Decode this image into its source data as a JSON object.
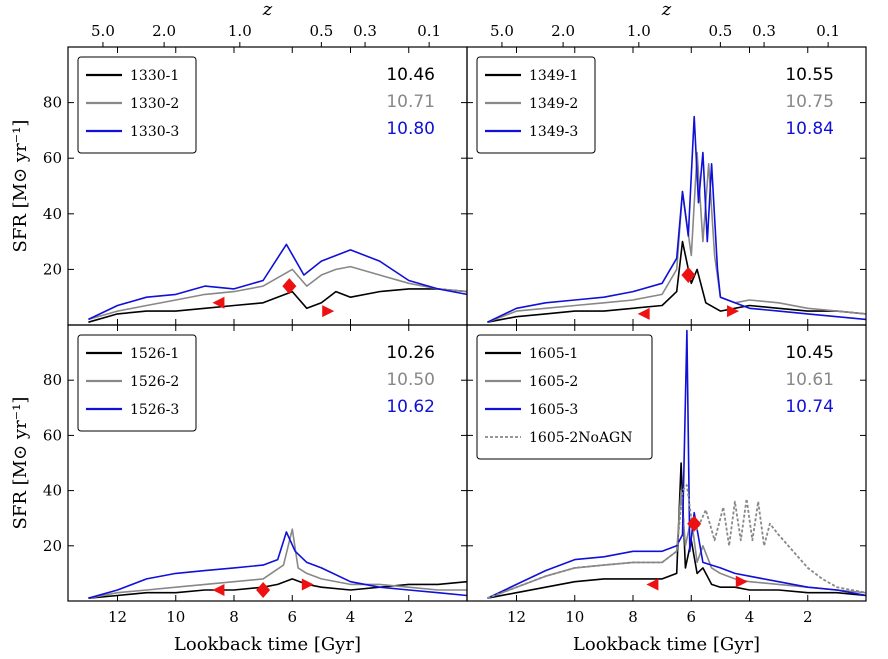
{
  "chart_data": {
    "type": "line",
    "xlabel": "Lookback time [Gyr]",
    "ylabel": "SFR [M⊙ yr⁻¹]",
    "top_axis_label": "z",
    "xlim": [
      13.7,
      0
    ],
    "ylim": [
      0,
      100
    ],
    "x_ticks": [
      12,
      10,
      8,
      6,
      4,
      2
    ],
    "y_ticks": [
      20,
      40,
      60,
      80
    ],
    "z_ticks": [
      {
        "label": "5.0",
        "t": 12.5
      },
      {
        "label": "2.0",
        "t": 10.4
      },
      {
        "label": "1.0",
        "t": 7.8
      },
      {
        "label": "0.5",
        "t": 5.0
      },
      {
        "label": "0.3",
        "t": 3.5
      },
      {
        "label": "0.1",
        "t": 1.3
      }
    ],
    "colors": {
      "run1": "#000000",
      "run2": "#888888",
      "run3": "#1010d8",
      "marker": "#ee1111"
    },
    "panels": [
      {
        "id": "1330",
        "legend": [
          "1330-1",
          "1330-2",
          "1330-3"
        ],
        "masses": [
          "10.46",
          "10.71",
          "10.80"
        ],
        "series": [
          {
            "name": "1330-1",
            "x": [
              13.0,
              12.0,
              11.0,
              10.0,
              9.0,
              8.0,
              7.0,
              6.0,
              5.5,
              5.0,
              4.5,
              4.0,
              3.0,
              2.0,
              1.0,
              0.0
            ],
            "y": [
              1,
              4,
              5,
              5,
              6,
              7,
              8,
              12,
              6,
              8,
              12,
              10,
              12,
              13,
              13,
              12
            ]
          },
          {
            "name": "1330-2",
            "x": [
              13.0,
              12.0,
              11.0,
              10.0,
              9.0,
              8.0,
              7.0,
              6.0,
              5.5,
              5.0,
              4.5,
              4.0,
              3.0,
              2.0,
              1.0,
              0.0
            ],
            "y": [
              2,
              5,
              7,
              9,
              11,
              12,
              14,
              20,
              14,
              18,
              20,
              21,
              18,
              15,
              13,
              12
            ]
          },
          {
            "name": "1330-3",
            "x": [
              13.0,
              12.0,
              11.0,
              10.0,
              9.0,
              8.0,
              7.0,
              6.2,
              5.6,
              5.0,
              4.5,
              4.0,
              3.0,
              2.0,
              1.0,
              0.0
            ],
            "y": [
              2,
              7,
              10,
              11,
              14,
              13,
              16,
              29,
              18,
              23,
              25,
              27,
              23,
              16,
              13,
              11
            ]
          }
        ],
        "markers": [
          {
            "shape": "triangle-left",
            "t": 8.5,
            "sfr": 8
          },
          {
            "shape": "diamond",
            "t": 6.1,
            "sfr": 14
          },
          {
            "shape": "triangle-right",
            "t": 4.8,
            "sfr": 5
          }
        ]
      },
      {
        "id": "1349",
        "legend": [
          "1349-1",
          "1349-2",
          "1349-3"
        ],
        "masses": [
          "10.55",
          "10.75",
          "10.84"
        ],
        "series": [
          {
            "name": "1349-1",
            "x": [
              13.0,
              12.0,
              11.0,
              10.0,
              9.0,
              8.0,
              7.0,
              6.5,
              6.3,
              6.0,
              5.8,
              5.5,
              5.0,
              4.5,
              4.0,
              3.0,
              2.0,
              1.0,
              0.0
            ],
            "y": [
              1,
              3,
              4,
              5,
              5,
              6,
              7,
              12,
              30,
              15,
              20,
              8,
              5,
              6,
              7,
              6,
              5,
              5,
              4
            ]
          },
          {
            "name": "1349-2",
            "x": [
              13.0,
              12.0,
              11.0,
              10.0,
              9.0,
              8.0,
              7.0,
              6.5,
              6.3,
              6.0,
              5.8,
              5.6,
              5.4,
              5.2,
              5.0,
              4.5,
              4.0,
              3.0,
              2.0,
              1.0,
              0.0
            ],
            "y": [
              1,
              5,
              6,
              7,
              8,
              9,
              11,
              20,
              48,
              25,
              62,
              30,
              58,
              25,
              10,
              8,
              9,
              8,
              6,
              5,
              4
            ]
          },
          {
            "name": "1349-3",
            "x": [
              13.0,
              12.0,
              11.0,
              10.0,
              9.0,
              8.0,
              7.0,
              6.5,
              6.3,
              6.1,
              5.9,
              5.75,
              5.6,
              5.45,
              5.3,
              5.1,
              5.0,
              4.5,
              4.0,
              3.0,
              2.0,
              1.0,
              0.0
            ],
            "y": [
              1,
              6,
              8,
              9,
              10,
              12,
              15,
              24,
              48,
              32,
              75,
              44,
              62,
              30,
              58,
              20,
              10,
              8,
              6,
              5,
              4,
              3,
              2
            ]
          }
        ],
        "markers": [
          {
            "shape": "triangle-left",
            "t": 7.6,
            "sfr": 4
          },
          {
            "shape": "diamond",
            "t": 6.1,
            "sfr": 18
          },
          {
            "shape": "triangle-right",
            "t": 4.6,
            "sfr": 5
          }
        ]
      },
      {
        "id": "1526",
        "legend": [
          "1526-1",
          "1526-2",
          "1526-3"
        ],
        "masses": [
          "10.26",
          "10.50",
          "10.62"
        ],
        "series": [
          {
            "name": "1526-1",
            "x": [
              13.0,
              12.0,
              11.0,
              10.0,
              9.0,
              8.0,
              7.0,
              6.5,
              6.0,
              5.5,
              5.0,
              4.0,
              3.0,
              2.0,
              1.0,
              0.0
            ],
            "y": [
              1,
              2,
              3,
              3,
              4,
              4,
              5,
              6,
              8,
              6,
              5,
              4,
              5,
              6,
              6,
              7
            ]
          },
          {
            "name": "1526-2",
            "x": [
              13.0,
              12.0,
              11.0,
              10.0,
              9.0,
              8.0,
              7.0,
              6.3,
              6.0,
              5.8,
              5.5,
              5.0,
              4.0,
              3.0,
              2.0,
              1.0,
              0.0
            ],
            "y": [
              1,
              3,
              4,
              5,
              6,
              7,
              8,
              13,
              26,
              12,
              10,
              8,
              6,
              6,
              5,
              4,
              4
            ]
          },
          {
            "name": "1526-3",
            "x": [
              13.0,
              12.0,
              11.0,
              10.0,
              9.0,
              8.0,
              7.0,
              6.5,
              6.2,
              5.9,
              5.5,
              5.0,
              4.0,
              3.0,
              2.0,
              1.0,
              0.0
            ],
            "y": [
              1,
              4,
              8,
              10,
              11,
              12,
              13,
              15,
              25,
              18,
              14,
              12,
              7,
              5,
              4,
              3,
              2
            ]
          }
        ],
        "markers": [
          {
            "shape": "triangle-left",
            "t": 8.5,
            "sfr": 4
          },
          {
            "shape": "diamond",
            "t": 7.0,
            "sfr": 4
          },
          {
            "shape": "triangle-right",
            "t": 5.5,
            "sfr": 6
          }
        ]
      },
      {
        "id": "1605",
        "legend": [
          "1605-1",
          "1605-2",
          "1605-3",
          "1605-2NoAGN"
        ],
        "masses": [
          "10.45",
          "10.61",
          "10.74"
        ],
        "series": [
          {
            "name": "1605-1",
            "x": [
              13.0,
              12.0,
              11.0,
              10.0,
              9.0,
              8.0,
              7.0,
              6.5,
              6.35,
              6.2,
              6.0,
              5.8,
              5.6,
              5.3,
              5.0,
              4.5,
              4.0,
              3.0,
              2.0,
              1.0,
              0.0
            ],
            "y": [
              1,
              3,
              5,
              7,
              8,
              8,
              8,
              10,
              50,
              12,
              22,
              10,
              12,
              6,
              5,
              5,
              4,
              4,
              3,
              3,
              2
            ]
          },
          {
            "name": "1605-2",
            "x": [
              13.0,
              12.0,
              11.0,
              10.0,
              9.0,
              8.0,
              7.0,
              6.5,
              6.35,
              6.2,
              6.0,
              5.8,
              5.6,
              5.3,
              5.0,
              4.5,
              4.0,
              3.0,
              2.0,
              1.0,
              0.0
            ],
            "y": [
              1,
              5,
              9,
              12,
              13,
              14,
              14,
              18,
              40,
              20,
              30,
              14,
              20,
              12,
              10,
              8,
              7,
              6,
              5,
              4,
              3
            ]
          },
          {
            "name": "1605-3",
            "x": [
              13.0,
              12.0,
              11.0,
              10.0,
              9.0,
              8.0,
              7.0,
              6.5,
              6.3,
              6.15,
              6.05,
              5.9,
              5.6,
              5.3,
              5.0,
              4.5,
              4.0,
              3.0,
              2.0,
              1.0,
              0.0
            ],
            "y": [
              1,
              6,
              11,
              15,
              16,
              18,
              18,
              20,
              24,
              98,
              18,
              32,
              14,
              13,
              12,
              10,
              9,
              7,
              5,
              4,
              2
            ]
          },
          {
            "name": "1605-2NoAGN",
            "dashed": true,
            "x": [
              13.0,
              12.0,
              11.0,
              10.0,
              9.0,
              8.0,
              7.0,
              6.5,
              6.3,
              6.15,
              6.0,
              5.8,
              5.5,
              5.2,
              4.9,
              4.7,
              4.5,
              4.3,
              4.1,
              3.9,
              3.7,
              3.5,
              3.3,
              3.0,
              2.5,
              2.0,
              1.5,
              1.0,
              0.0
            ],
            "y": [
              1,
              5,
              9,
              12,
              13,
              14,
              14,
              18,
              40,
              42,
              30,
              26,
              33,
              22,
              34,
              20,
              36,
              22,
              37,
              22,
              36,
              20,
              28,
              24,
              18,
              12,
              8,
              5,
              3
            ]
          }
        ],
        "markers": [
          {
            "shape": "triangle-left",
            "t": 7.3,
            "sfr": 6
          },
          {
            "shape": "diamond",
            "t": 5.9,
            "sfr": 28
          },
          {
            "shape": "triangle-right",
            "t": 4.3,
            "sfr": 7
          }
        ]
      }
    ]
  }
}
